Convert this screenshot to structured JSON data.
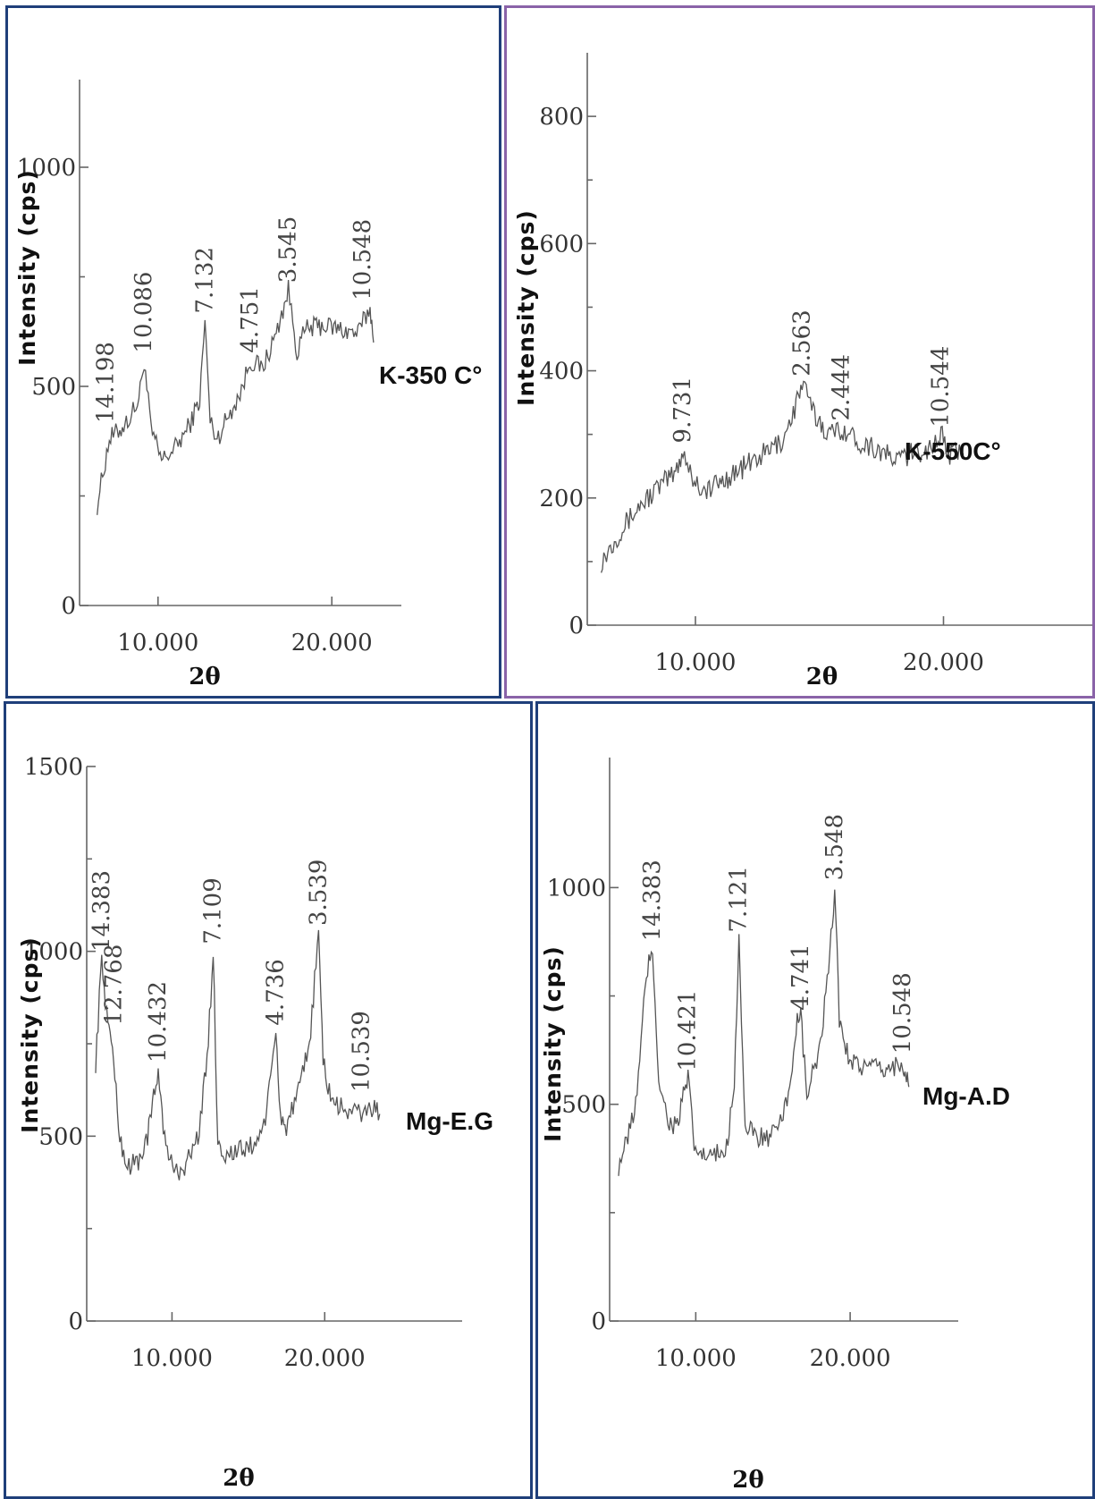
{
  "panel_colors": [
    "#1f3f7a",
    "#8a63a8",
    "#1f3f7a",
    "#1f3f7a"
  ],
  "chart_data": [
    {
      "type": "line",
      "title": "",
      "sample_label": "K-350 C°",
      "xlabel": "2θ",
      "ylabel": "Intensity (cps)",
      "xlim": [
        6.0,
        24.0
      ],
      "ylim": [
        0,
        1200
      ],
      "xticks": [
        10.0,
        20.0
      ],
      "xtick_labels": [
        "10.000",
        "20.000"
      ],
      "yticks": [
        0,
        500,
        1000
      ],
      "ytick_labels": [
        "0",
        "500",
        "1000"
      ],
      "series": [
        {
          "x": [
            6.5,
            7.2,
            7.8,
            8.4,
            8.9,
            9.2,
            9.6,
            10.2,
            11.0,
            11.8,
            12.4,
            12.7,
            13.0,
            13.4,
            14.0,
            14.8,
            15.3,
            16.0,
            16.8,
            17.5,
            18.0,
            18.5,
            19.5,
            20.5,
            21.5,
            22.2,
            22.4
          ],
          "y": [
            230,
            380,
            400,
            430,
            470,
            560,
            400,
            330,
            360,
            410,
            470,
            650,
            420,
            380,
            430,
            490,
            560,
            540,
            620,
            720,
            580,
            630,
            640,
            630,
            620,
            680,
            600
          ]
        }
      ],
      "peak_labels": [
        {
          "text": "14.198",
          "x": 7.0,
          "y": 400
        },
        {
          "text": "10.086",
          "x": 9.2,
          "y": 560
        },
        {
          "text": "7.132",
          "x": 12.7,
          "y": 650
        },
        {
          "text": "4.751",
          "x": 15.3,
          "y": 560
        },
        {
          "text": "3.545",
          "x": 17.5,
          "y": 720
        },
        {
          "text": "10.548",
          "x": 21.8,
          "y": 680
        }
      ]
    },
    {
      "type": "line",
      "title": "",
      "sample_label": "K-550C°",
      "xlabel": "2θ",
      "ylabel": "Intensity (cps)",
      "xlim": [
        6.0,
        26.0
      ],
      "ylim": [
        0,
        900
      ],
      "xticks": [
        10.0,
        20.0
      ],
      "xtick_labels": [
        "10.000",
        "20.000"
      ],
      "yticks": [
        0,
        200,
        400,
        600,
        800
      ],
      "ytick_labels": [
        "0",
        "200",
        "400",
        "600",
        "800"
      ],
      "series": [
        {
          "x": [
            6.2,
            7.0,
            7.8,
            8.6,
            9.2,
            9.5,
            9.9,
            10.4,
            11.2,
            12.0,
            12.8,
            13.5,
            14.0,
            14.3,
            14.8,
            15.4,
            15.9,
            16.5,
            17.2,
            18.0,
            18.8,
            19.5,
            19.9,
            20.2,
            20.8
          ],
          "y": [
            100,
            150,
            190,
            220,
            240,
            275,
            230,
            210,
            230,
            250,
            270,
            290,
            340,
            380,
            330,
            300,
            310,
            290,
            280,
            260,
            270,
            280,
            300,
            270,
            270
          ]
        }
      ],
      "peak_labels": [
        {
          "text": "9.731",
          "x": 9.5,
          "y": 275
        },
        {
          "text": "2.563",
          "x": 14.3,
          "y": 380
        },
        {
          "text": "2.444",
          "x": 15.9,
          "y": 310
        },
        {
          "text": "10.544",
          "x": 19.9,
          "y": 300
        }
      ]
    },
    {
      "type": "line",
      "title": "",
      "sample_label": "Mg-E.G",
      "xlabel": "2θ",
      "ylabel": "Intensity (cps)",
      "xlim": [
        5.0,
        29.0
      ],
      "ylim": [
        0,
        1500
      ],
      "xticks": [
        10.0,
        20.0
      ],
      "xtick_labels": [
        "10.000",
        "20.000"
      ],
      "yticks": [
        0,
        500,
        1000,
        1500
      ],
      "ytick_labels": [
        "0",
        "500",
        "1000",
        "1500"
      ],
      "series": [
        {
          "x": [
            5.0,
            5.4,
            5.8,
            6.1,
            6.5,
            7.0,
            7.8,
            8.4,
            8.8,
            9.1,
            9.6,
            10.3,
            11.0,
            11.7,
            12.3,
            12.7,
            13.0,
            13.5,
            14.5,
            15.5,
            16.2,
            16.8,
            17.1,
            17.4,
            18.2,
            19.0,
            19.6,
            19.9,
            20.3,
            20.8,
            21.6,
            22.4,
            23.0,
            23.6
          ],
          "y": [
            700,
            980,
            800,
            750,
            520,
            420,
            430,
            500,
            600,
            680,
            460,
            400,
            430,
            500,
            700,
            1000,
            480,
            450,
            460,
            480,
            560,
            780,
            560,
            520,
            600,
            750,
            1050,
            700,
            620,
            580,
            570,
            560,
            580,
            560
          ]
        }
      ],
      "peak_labels": [
        {
          "text": "14.383",
          "x": 5.4,
          "y": 980
        },
        {
          "text": "12.768",
          "x": 6.2,
          "y": 780
        },
        {
          "text": "10.432",
          "x": 9.1,
          "y": 680
        },
        {
          "text": "7.109",
          "x": 12.7,
          "y": 1000
        },
        {
          "text": "4.736",
          "x": 16.8,
          "y": 780
        },
        {
          "text": "3.539",
          "x": 19.6,
          "y": 1050
        },
        {
          "text": "10.539",
          "x": 22.4,
          "y": 600
        }
      ]
    },
    {
      "type": "line",
      "title": "",
      "sample_label": "Mg-A.D",
      "xlabel": "2θ",
      "ylabel": "Intensity (cps)",
      "xlim": [
        5.0,
        27.0
      ],
      "ylim": [
        0,
        1300
      ],
      "xticks": [
        10.0,
        20.0
      ],
      "xtick_labels": [
        "10.000",
        "20.000"
      ],
      "yticks": [
        0,
        500,
        1000
      ],
      "ytick_labels": [
        "0",
        "500",
        "1000"
      ],
      "series": [
        {
          "x": [
            5.0,
            5.6,
            6.2,
            6.8,
            7.2,
            7.6,
            8.2,
            8.8,
            9.2,
            9.5,
            9.9,
            10.5,
            11.3,
            12.0,
            12.5,
            12.8,
            13.2,
            13.8,
            14.6,
            15.4,
            16.0,
            16.5,
            16.8,
            17.2,
            18.0,
            18.6,
            19.0,
            19.3,
            19.8,
            20.5,
            21.5,
            22.5,
            23.4,
            23.6,
            23.8
          ],
          "y": [
            360,
            420,
            520,
            800,
            860,
            560,
            460,
            450,
            520,
            560,
            400,
            380,
            380,
            400,
            560,
            880,
            440,
            430,
            420,
            440,
            520,
            680,
            700,
            520,
            620,
            800,
            1000,
            700,
            620,
            590,
            580,
            580,
            600,
            560,
            540
          ]
        }
      ],
      "peak_labels": [
        {
          "text": "14.383",
          "x": 7.2,
          "y": 860
        },
        {
          "text": "10.421",
          "x": 9.5,
          "y": 560
        },
        {
          "text": "7.121",
          "x": 12.8,
          "y": 880
        },
        {
          "text": "4.741",
          "x": 16.8,
          "y": 700
        },
        {
          "text": "3.548",
          "x": 19.0,
          "y": 1000
        },
        {
          "text": "10.548",
          "x": 23.4,
          "y": 600
        }
      ]
    }
  ]
}
